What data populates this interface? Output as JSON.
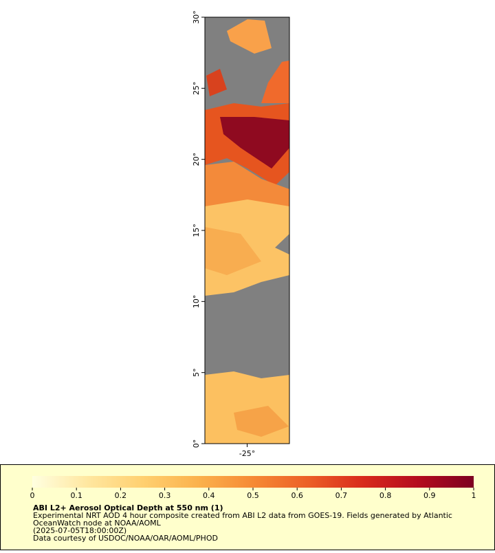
{
  "map": {
    "ylim": [
      0,
      30
    ],
    "yticks": [
      {
        "value": 0,
        "label": "0°"
      },
      {
        "value": 5,
        "label": "5°"
      },
      {
        "value": 10,
        "label": "10°"
      },
      {
        "value": 15,
        "label": "15°"
      },
      {
        "value": 20,
        "label": "20°"
      },
      {
        "value": 25,
        "label": "25°"
      },
      {
        "value": 30,
        "label": "30°"
      }
    ],
    "xlim": [
      -28,
      -22
    ],
    "xticks": [
      {
        "value": -25,
        "label": "-25°"
      }
    ]
  },
  "colorbar": {
    "lim": [
      0,
      1
    ],
    "ticks": [
      0,
      0.1,
      0.2,
      0.3,
      0.4,
      0.5,
      0.6,
      0.7,
      0.8,
      0.9,
      1
    ],
    "colors": [
      "#ffffe0",
      "#ffe7a0",
      "#ffd070",
      "#fbb24c",
      "#f68a35",
      "#ec5f26",
      "#d82a1c",
      "#b40c1e",
      "#7d0021"
    ]
  },
  "legend": {
    "title": "ABI L2+ Aerosol Optical Depth at 550 nm (1)",
    "lines": [
      "Experimental NRT AOD 4 hour composite created from ABI L2 data from GOES-19. Fields generated by Atlantic",
      "OceanWatch node at NOAA/AOML",
      "(2025-07-05T18:00:00Z)",
      "Data courtesy of USDOC/NOAA/OAR/AOML/PHOD"
    ]
  }
}
